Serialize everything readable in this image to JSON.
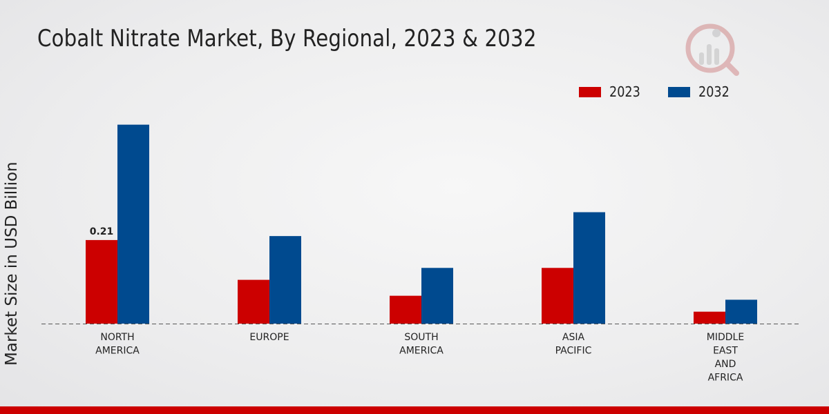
{
  "chart_data": {
    "type": "bar",
    "title": "Cobalt Nitrate Market, By Regional, 2023 & 2032",
    "xlabel": "",
    "ylabel": "Market Size in USD Billion",
    "categories": [
      [
        "NORTH",
        "AMERICA"
      ],
      [
        "EUROPE"
      ],
      [
        "SOUTH",
        "AMERICA"
      ],
      [
        "ASIA",
        "PACIFIC"
      ],
      [
        "MIDDLE",
        "EAST",
        "AND",
        "AFRICA"
      ]
    ],
    "series": [
      {
        "name": "2023",
        "color": "#cc0000",
        "values": [
          0.21,
          0.11,
          0.07,
          0.14,
          0.03
        ]
      },
      {
        "name": "2032",
        "color": "#004a8f",
        "values": [
          0.5,
          0.22,
          0.14,
          0.28,
          0.06
        ]
      }
    ],
    "data_labels": [
      {
        "series": 0,
        "index": 0,
        "text": "0.21"
      }
    ],
    "ylim": [
      0,
      0.6
    ],
    "grid": false,
    "legend_position": "top-right"
  },
  "colors": {
    "accent": "#cc0000",
    "secondary": "#004a8f",
    "footer": "#cc0000"
  },
  "logo_icon": "market-research-logo-icon"
}
